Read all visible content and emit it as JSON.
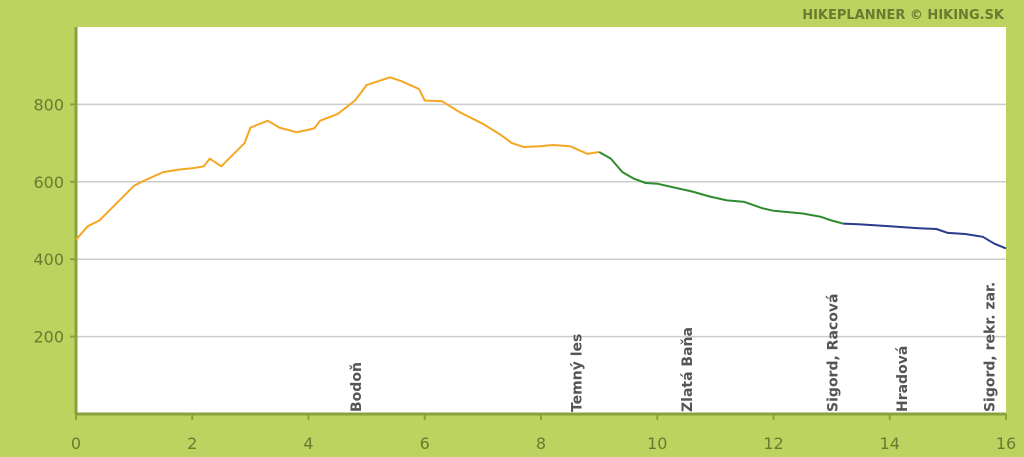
{
  "credit": "HIKEPLANNER © HIKING.SK",
  "colors": {
    "frame": "#bcd35f",
    "plot_bg": "#ffffff",
    "grid": "#cccccc",
    "axis": "#8aa23a",
    "tick_text": "#6a7a30",
    "waypoint_text": "#555555"
  },
  "chart_data": {
    "type": "line",
    "title": "",
    "xlabel": "",
    "ylabel": "",
    "xlim": [
      0,
      16
    ],
    "ylim": [
      0,
      1000
    ],
    "x_ticks": [
      0,
      2,
      4,
      6,
      8,
      10,
      12,
      14,
      16
    ],
    "y_ticks": [
      200,
      400,
      600,
      800
    ],
    "grid": true,
    "series": [
      {
        "color": "#f5a623",
        "points": [
          [
            0,
            450
          ],
          [
            0.2,
            485
          ],
          [
            0.4,
            500
          ],
          [
            0.6,
            530
          ],
          [
            0.8,
            560
          ],
          [
            1.0,
            590
          ],
          [
            1.2,
            605
          ],
          [
            1.5,
            625
          ],
          [
            1.8,
            632
          ],
          [
            2.0,
            635
          ],
          [
            2.2,
            640
          ],
          [
            2.3,
            660
          ],
          [
            2.5,
            640
          ],
          [
            2.7,
            670
          ],
          [
            2.9,
            700
          ],
          [
            3.0,
            740
          ],
          [
            3.2,
            752
          ],
          [
            3.3,
            758
          ],
          [
            3.5,
            740
          ],
          [
            3.8,
            728
          ],
          [
            4.1,
            738
          ],
          [
            4.2,
            758
          ],
          [
            4.5,
            775
          ],
          [
            4.8,
            810
          ],
          [
            5.0,
            850
          ],
          [
            5.2,
            860
          ],
          [
            5.4,
            870
          ],
          [
            5.6,
            860
          ],
          [
            5.9,
            840
          ],
          [
            6.0,
            810
          ],
          [
            6.3,
            808
          ],
          [
            6.6,
            780
          ],
          [
            7.0,
            750
          ],
          [
            7.3,
            722
          ],
          [
            7.5,
            700
          ],
          [
            7.7,
            690
          ],
          [
            8.0,
            692
          ],
          [
            8.2,
            695
          ],
          [
            8.5,
            692
          ],
          [
            8.8,
            672
          ],
          [
            9.0,
            677
          ]
        ]
      },
      {
        "color": "#2e8b2e",
        "points": [
          [
            9.0,
            677
          ],
          [
            9.2,
            660
          ],
          [
            9.4,
            625
          ],
          [
            9.6,
            608
          ],
          [
            9.8,
            597
          ],
          [
            10.0,
            595
          ],
          [
            10.3,
            585
          ],
          [
            10.6,
            575
          ],
          [
            10.9,
            562
          ],
          [
            11.2,
            552
          ],
          [
            11.5,
            548
          ],
          [
            11.8,
            532
          ],
          [
            12.0,
            525
          ],
          [
            12.5,
            518
          ],
          [
            12.8,
            510
          ],
          [
            13.0,
            500
          ],
          [
            13.2,
            492
          ]
        ]
      },
      {
        "color": "#2a3a8c",
        "points": [
          [
            13.2,
            492
          ],
          [
            13.5,
            490
          ],
          [
            14.0,
            485
          ],
          [
            14.5,
            480
          ],
          [
            14.8,
            478
          ],
          [
            15.0,
            468
          ],
          [
            15.3,
            465
          ],
          [
            15.6,
            458
          ],
          [
            15.8,
            440
          ],
          [
            16.0,
            428
          ]
        ]
      }
    ],
    "waypoints": [
      {
        "x": 4.9,
        "label": "Bodoň"
      },
      {
        "x": 8.7,
        "label": "Temný les"
      },
      {
        "x": 10.6,
        "label": "Zlatá Baňa"
      },
      {
        "x": 13.1,
        "label": "Sigord, Racová"
      },
      {
        "x": 14.3,
        "label": "Hradová"
      },
      {
        "x": 15.8,
        "label": "Sigord, rekr. zar."
      }
    ]
  }
}
